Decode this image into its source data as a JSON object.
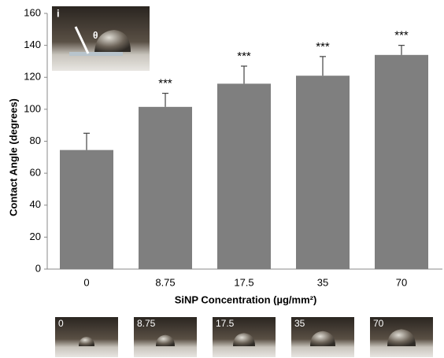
{
  "chart_data": {
    "type": "bar",
    "x_label": "SiNP Concentration (µg/mm²)",
    "y_label": "Contact Angle (degrees)",
    "categories": [
      "0",
      "8.75",
      "17.5",
      "35",
      "70"
    ],
    "values": [
      74.5,
      101.5,
      116,
      121,
      134
    ],
    "errors": [
      10.5,
      8.5,
      11,
      12,
      6
    ],
    "significance": [
      null,
      "***",
      "***",
      "***",
      "***"
    ],
    "color": "#7f7f7f",
    "ylim": [
      0,
      160
    ],
    "yticks": [
      0,
      20,
      40,
      60,
      80,
      100,
      120,
      140,
      160
    ],
    "grid": false,
    "inset": {
      "label": "i",
      "symbol": "θ"
    }
  }
}
